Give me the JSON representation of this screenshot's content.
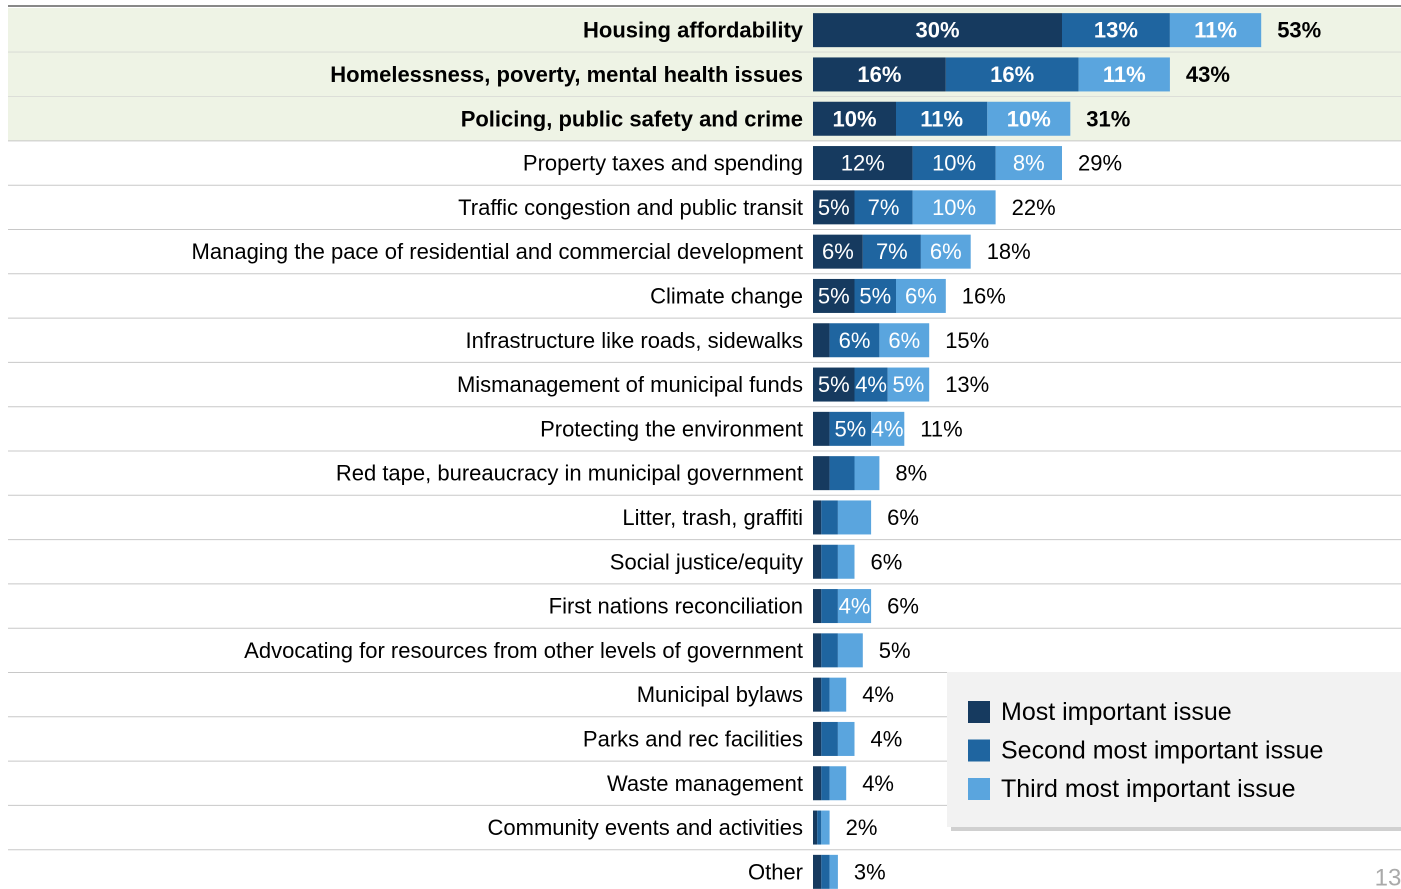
{
  "chart_data": {
    "type": "stacked-bar-horizontal",
    "categories": [
      "Housing affordability",
      "Homelessness, poverty, mental health issues",
      "Policing, public safety and crime",
      "Property taxes and spending",
      "Traffic congestion and public transit",
      "Managing the pace of residential and commercial development",
      "Climate change",
      "Infrastructure like roads, sidewalks",
      "Mismanagement of municipal funds",
      "Protecting the environment",
      "Red tape, bureaucracy in municipal government",
      "Litter, trash, graffiti",
      "Social justice/equity",
      "First nations reconciliation",
      "Advocating for resources from other levels of government",
      "Municipal bylaws",
      "Parks and rec facilities",
      "Waste management",
      "Community events and activities",
      "Other"
    ],
    "highlight": [
      0,
      1,
      2
    ],
    "series": [
      {
        "name": "Most important issue",
        "color": "#163a5f",
        "values": [
          30,
          16,
          10,
          12,
          5,
          6,
          5,
          2,
          5,
          2,
          2,
          1,
          1,
          1,
          1,
          1,
          1,
          1,
          0.5,
          1
        ],
        "value_labels": [
          "30%",
          "16%",
          "10%",
          "12%",
          "5%",
          "6%",
          "5%",
          null,
          "5%",
          null,
          null,
          null,
          null,
          null,
          null,
          null,
          null,
          null,
          null,
          null
        ]
      },
      {
        "name": "Second most important issue",
        "color": "#1f65a0",
        "values": [
          13,
          16,
          11,
          10,
          7,
          7,
          5,
          6,
          4,
          5,
          3,
          2,
          2,
          2,
          2,
          1,
          2,
          1,
          0.5,
          1
        ],
        "value_labels": [
          "13%",
          "16%",
          "11%",
          "10%",
          "7%",
          "7%",
          "5%",
          "6%",
          "4%",
          "5%",
          null,
          null,
          null,
          null,
          null,
          null,
          null,
          null,
          null,
          null
        ]
      },
      {
        "name": "Third most important issue",
        "color": "#5aa5de",
        "values": [
          11,
          11,
          10,
          8,
          10,
          6,
          6,
          6,
          5,
          4,
          3,
          4,
          2,
          4,
          3,
          2,
          2,
          2,
          1,
          1
        ],
        "value_labels": [
          "11%",
          "11%",
          "10%",
          "8%",
          "10%",
          "6%",
          "6%",
          "6%",
          "5%",
          "4%",
          null,
          null,
          null,
          "4%",
          null,
          null,
          null,
          null,
          null,
          null
        ]
      }
    ],
    "totals": [
      53,
      43,
      31,
      29,
      22,
      18,
      16,
      15,
      13,
      11,
      8,
      6,
      6,
      6,
      5,
      4,
      4,
      4,
      2,
      3
    ],
    "total_labels": [
      "53%",
      "43%",
      "31%",
      "29%",
      "22%",
      "18%",
      "16%",
      "15%",
      "13%",
      "11%",
      "8%",
      "6%",
      "6%",
      "6%",
      "5%",
      "4%",
      "4%",
      "4%",
      "2%",
      "3%"
    ],
    "legend": "lower right",
    "page_number": "13"
  }
}
